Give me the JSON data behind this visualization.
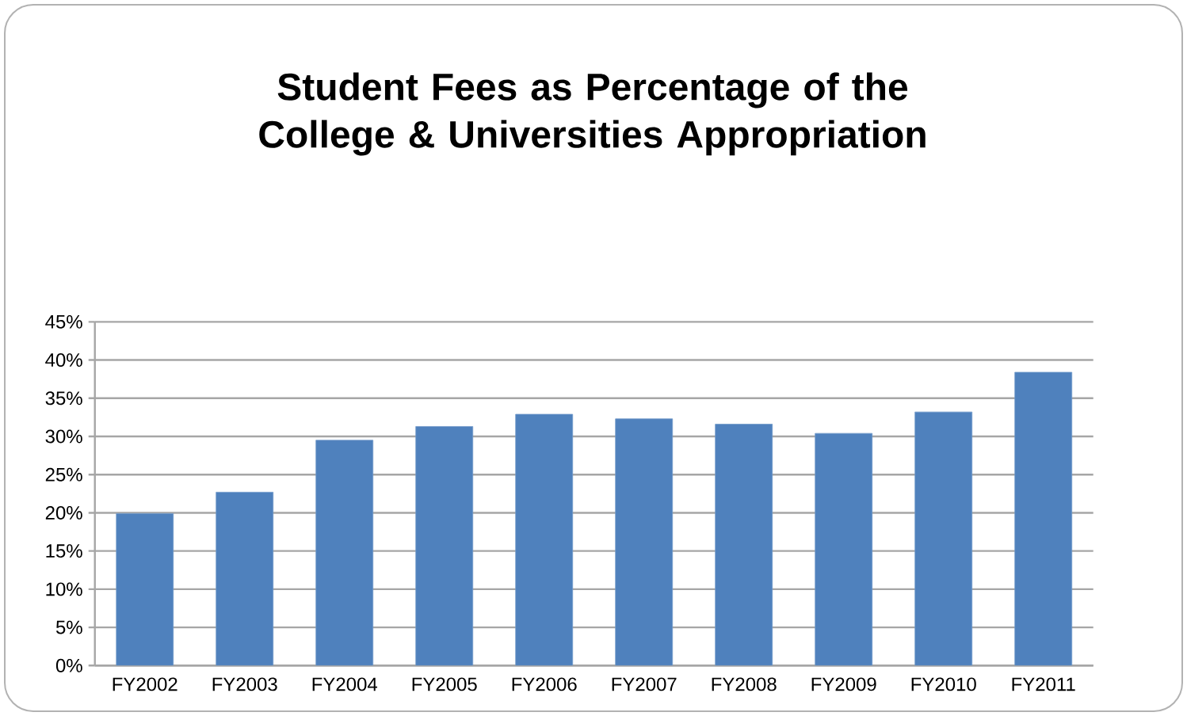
{
  "chart_data": {
    "type": "bar",
    "title": "Student Fees as Percentage of the College & Universities Appropriation",
    "categories": [
      "FY2002",
      "FY2003",
      "FY2004",
      "FY2005",
      "FY2006",
      "FY2007",
      "FY2008",
      "FY2009",
      "FY2010",
      "FY2011"
    ],
    "values": [
      19.9,
      22.7,
      29.5,
      31.3,
      32.9,
      32.3,
      31.6,
      30.4,
      33.2,
      38.4
    ],
    "color": "#4f81bd",
    "ylim": [
      0,
      45
    ],
    "yticks": [
      {
        "value": 0,
        "label": "0%"
      },
      {
        "value": 5,
        "label": "5%"
      },
      {
        "value": 10,
        "label": "10%"
      },
      {
        "value": 15,
        "label": "15%"
      },
      {
        "value": 20,
        "label": "20%"
      },
      {
        "value": 25,
        "label": "25%"
      },
      {
        "value": 30,
        "label": "30%"
      },
      {
        "value": 35,
        "label": "35%"
      },
      {
        "value": 40,
        "label": "40%"
      },
      {
        "value": 45,
        "label": "45%"
      }
    ],
    "grid": "y"
  }
}
